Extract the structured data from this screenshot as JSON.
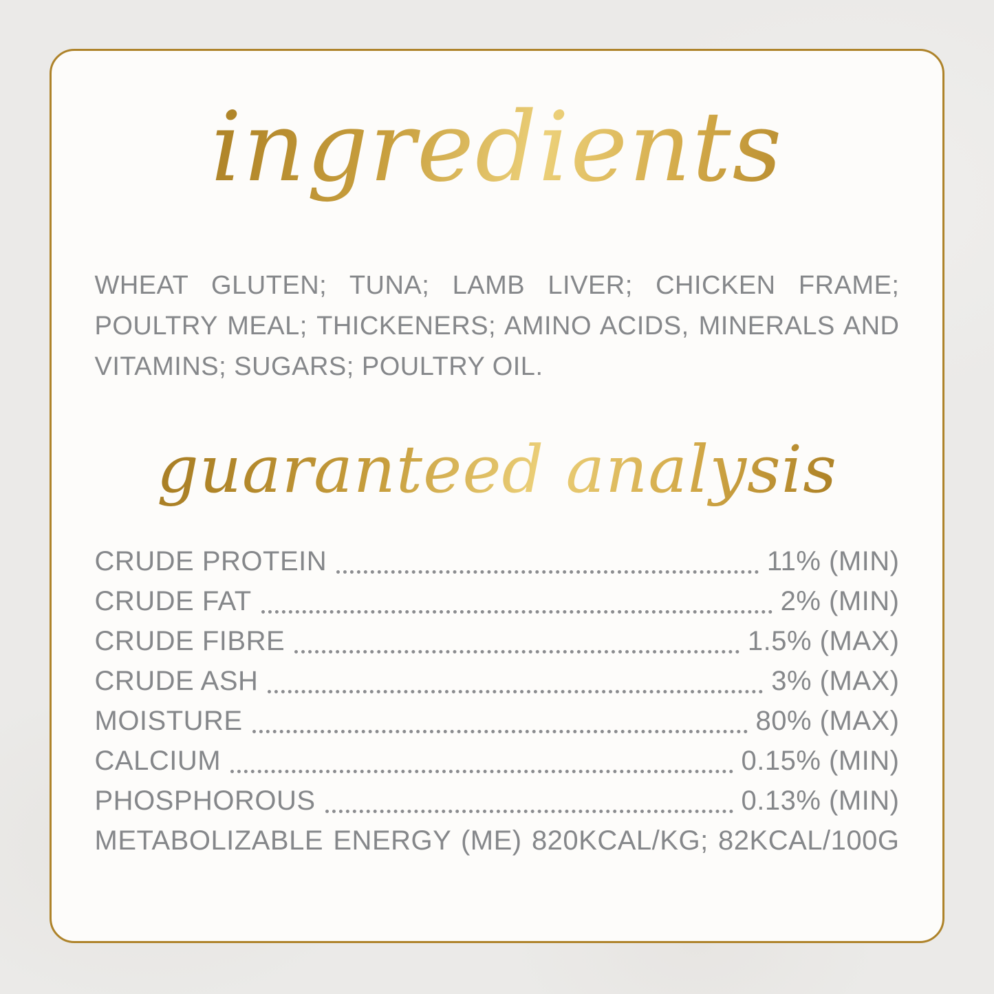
{
  "palette": {
    "outer_background": "#ebeae8",
    "card_background": "#fdfcfa",
    "border_gold": "#ae832a",
    "text_gray": "#85878a",
    "gold_gradient_dark": "#9e7520",
    "gold_gradient_mid": "#c89f3e",
    "gold_gradient_light": "#ecd079"
  },
  "sections": {
    "ingredients": {
      "heading": "ingredients",
      "body": "WHEAT GLUTEN; TUNA; LAMB LIVER; CHICKEN FRAME; POULTRY MEAL; THICKENERS; AMINO ACIDS, MINERALS AND VITAMINS; SUGARS; POULTRY OIL."
    },
    "analysis": {
      "heading": "guaranteed analysis",
      "rows": [
        {
          "label": "CRUDE PROTEIN",
          "value": "11% (MIN)"
        },
        {
          "label": "CRUDE FAT",
          "value": "2% (MIN)"
        },
        {
          "label": "CRUDE FIBRE",
          "value": "1.5% (MAX)"
        },
        {
          "label": "CRUDE ASH",
          "value": "3% (MAX)"
        },
        {
          "label": "MOISTURE",
          "value": "80% (MAX)"
        },
        {
          "label": "CALCIUM",
          "value": "0.15% (MIN)"
        },
        {
          "label": "PHOSPHOROUS",
          "value": "0.13% (MIN)"
        }
      ],
      "footer": "METABOLIZABLE ENERGY (ME) 820KCAL/KG; 82KCAL/100G"
    }
  }
}
